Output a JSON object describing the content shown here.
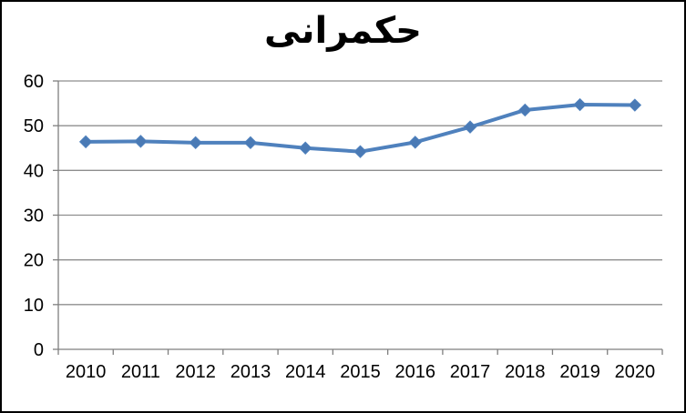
{
  "chart_data": {
    "type": "line",
    "title": "حکمرانی",
    "categories": [
      "2010",
      "2011",
      "2012",
      "2013",
      "2014",
      "2015",
      "2016",
      "2017",
      "2018",
      "2019",
      "2020"
    ],
    "series": [
      {
        "name": "حکمرانی",
        "values": [
          46.4,
          46.5,
          46.2,
          46.2,
          45.0,
          44.2,
          46.3,
          49.7,
          53.5,
          54.7,
          54.6
        ]
      }
    ],
    "xlabel": "",
    "ylabel": "",
    "ylim": [
      0,
      60
    ],
    "y_ticks": [
      0,
      10,
      20,
      30,
      40,
      50,
      60
    ],
    "grid": true,
    "legend_position": "none",
    "marker": "diamond",
    "colors": {
      "line": "#4f81bd",
      "marker_fill": "#4a7ab5",
      "gridline": "#8e8e8e",
      "axis": "#7f7f7f",
      "tick_text": "#000000",
      "frame_border": "#000000",
      "background": "#ffffff"
    }
  }
}
